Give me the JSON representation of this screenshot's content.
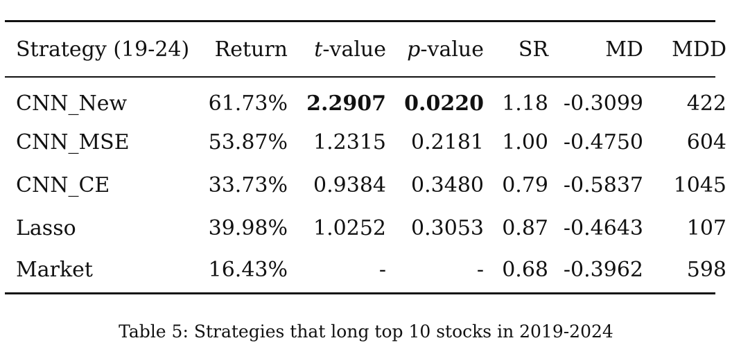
{
  "table": {
    "header": {
      "strategy": "Strategy (19-24)",
      "return": "Return",
      "t_italic": "t",
      "t_rest": "-value",
      "p_italic": "p",
      "p_rest": "-value",
      "sr": "SR",
      "md": "MD",
      "mdd": "MDD"
    },
    "rows": [
      {
        "strategy": "CNN_New",
        "return": "61.73%",
        "t_value": "2.2907",
        "p_value": "0.0220",
        "sr": "1.18",
        "md": "-0.3099",
        "mdd": "422"
      },
      {
        "strategy": "CNN_MSE",
        "return": "53.87%",
        "t_value": "1.2315",
        "p_value": "0.2181",
        "sr": "1.00",
        "md": "-0.4750",
        "mdd": "604"
      },
      {
        "strategy": "CNN_CE",
        "return": "33.73%",
        "t_value": "0.9384",
        "p_value": "0.3480",
        "sr": "0.79",
        "md": "-0.5837",
        "mdd": "1045"
      },
      {
        "strategy": "Lasso",
        "return": "39.98%",
        "t_value": "1.0252",
        "p_value": "0.3053",
        "sr": "0.87",
        "md": "-0.4643",
        "mdd": "107"
      },
      {
        "strategy": "Market",
        "return": "16.43%",
        "t_value": "-",
        "p_value": "-",
        "sr": "0.68",
        "md": "-0.3962",
        "mdd": "598"
      }
    ]
  },
  "caption": "Table 5: Strategies that long top 10 stocks in 2019-2024"
}
